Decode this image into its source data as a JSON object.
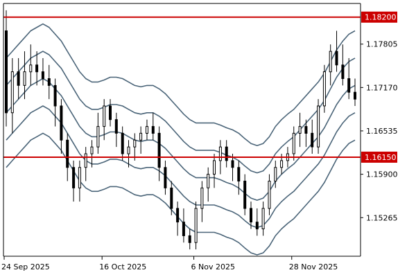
{
  "chart_data": {
    "type": "candlestick",
    "title": "",
    "xlabel": "",
    "ylabel": "",
    "ylim": [
      1.147,
      1.184
    ],
    "y_ticks": [
      "1.15265",
      "1.15900",
      "1.16535",
      "1.17170",
      "1.17805"
    ],
    "x_ticks": [
      {
        "label": "24 Sep 2025",
        "index": 0
      },
      {
        "label": "16 Oct 2025",
        "index": 16
      },
      {
        "label": "6 Nov 2025",
        "index": 31
      },
      {
        "label": "28 Nov 2025",
        "index": 47
      }
    ],
    "grid": false,
    "legend": "none",
    "horizontal_levels": [
      {
        "value": 1.182,
        "label": "1.18200",
        "color": "#cc0000"
      },
      {
        "value": 1.1615,
        "label": "1.16150",
        "color": "#cc0000"
      }
    ],
    "colors": {
      "bull": "#ffffff",
      "bear": "#000000",
      "wick": "#000000",
      "bands": "#4a6478",
      "axis": "#000000"
    },
    "ohlc": [
      [
        1.18,
        1.183,
        1.166,
        1.168
      ],
      [
        1.168,
        1.176,
        1.165,
        1.174
      ],
      [
        1.174,
        1.176,
        1.17,
        1.172
      ],
      [
        1.172,
        1.177,
        1.17,
        1.174
      ],
      [
        1.174,
        1.178,
        1.172,
        1.175
      ],
      [
        1.175,
        1.177,
        1.172,
        1.174
      ],
      [
        1.174,
        1.176,
        1.172,
        1.173
      ],
      [
        1.173,
        1.175,
        1.17,
        1.172
      ],
      [
        1.172,
        1.173,
        1.166,
        1.169
      ],
      [
        1.169,
        1.17,
        1.162,
        1.164
      ],
      [
        1.164,
        1.165,
        1.158,
        1.16
      ],
      [
        1.16,
        1.161,
        1.155,
        1.157
      ],
      [
        1.157,
        1.161,
        1.155,
        1.16
      ],
      [
        1.16,
        1.163,
        1.158,
        1.162
      ],
      [
        1.162,
        1.164,
        1.16,
        1.163
      ],
      [
        1.163,
        1.168,
        1.162,
        1.166
      ],
      [
        1.166,
        1.17,
        1.164,
        1.169
      ],
      [
        1.169,
        1.17,
        1.166,
        1.167
      ],
      [
        1.167,
        1.168,
        1.163,
        1.165
      ],
      [
        1.165,
        1.166,
        1.161,
        1.162
      ],
      [
        1.162,
        1.164,
        1.16,
        1.163
      ],
      [
        1.163,
        1.165,
        1.161,
        1.164
      ],
      [
        1.164,
        1.166,
        1.162,
        1.165
      ],
      [
        1.165,
        1.167,
        1.164,
        1.166
      ],
      [
        1.166,
        1.168,
        1.164,
        1.165
      ],
      [
        1.165,
        1.166,
        1.158,
        1.16
      ],
      [
        1.16,
        1.161,
        1.156,
        1.157
      ],
      [
        1.157,
        1.158,
        1.153,
        1.154
      ],
      [
        1.154,
        1.155,
        1.15,
        1.152
      ],
      [
        1.152,
        1.154,
        1.149,
        1.15
      ],
      [
        1.15,
        1.151,
        1.148,
        1.149
      ],
      [
        1.149,
        1.155,
        1.148,
        1.154
      ],
      [
        1.154,
        1.158,
        1.152,
        1.157
      ],
      [
        1.157,
        1.16,
        1.155,
        1.159
      ],
      [
        1.159,
        1.162,
        1.157,
        1.161
      ],
      [
        1.161,
        1.164,
        1.159,
        1.163
      ],
      [
        1.163,
        1.164,
        1.16,
        1.161
      ],
      [
        1.161,
        1.162,
        1.158,
        1.16
      ],
      [
        1.16,
        1.161,
        1.156,
        1.158
      ],
      [
        1.158,
        1.159,
        1.153,
        1.154
      ],
      [
        1.154,
        1.155,
        1.151,
        1.152
      ],
      [
        1.152,
        1.154,
        1.15,
        1.151
      ],
      [
        1.151,
        1.155,
        1.15,
        1.154
      ],
      [
        1.154,
        1.159,
        1.153,
        1.158
      ],
      [
        1.158,
        1.161,
        1.157,
        1.16
      ],
      [
        1.16,
        1.162,
        1.159,
        1.161
      ],
      [
        1.161,
        1.163,
        1.16,
        1.162
      ],
      [
        1.162,
        1.166,
        1.161,
        1.165
      ],
      [
        1.165,
        1.168,
        1.163,
        1.166
      ],
      [
        1.166,
        1.167,
        1.163,
        1.165
      ],
      [
        1.165,
        1.167,
        1.162,
        1.163
      ],
      [
        1.163,
        1.17,
        1.162,
        1.169
      ],
      [
        1.169,
        1.175,
        1.168,
        1.174
      ],
      [
        1.174,
        1.178,
        1.172,
        1.177
      ],
      [
        1.177,
        1.18,
        1.174,
        1.175
      ],
      [
        1.175,
        1.178,
        1.172,
        1.173
      ],
      [
        1.173,
        1.176,
        1.17,
        1.171
      ],
      [
        1.171,
        1.173,
        1.169,
        1.17
      ]
    ],
    "bollinger": {
      "mid": [
        1.168,
        1.169,
        1.17,
        1.171,
        1.172,
        1.1725,
        1.173,
        1.1725,
        1.1715,
        1.1705,
        1.169,
        1.1675,
        1.166,
        1.165,
        1.1645,
        1.1645,
        1.1648,
        1.1652,
        1.1652,
        1.165,
        1.1645,
        1.164,
        1.1638,
        1.164,
        1.164,
        1.1635,
        1.1628,
        1.1618,
        1.1608,
        1.1598,
        1.159,
        1.1585,
        1.1585,
        1.1585,
        1.1585,
        1.1582,
        1.1578,
        1.1575,
        1.157,
        1.1562,
        1.1555,
        1.1552,
        1.1555,
        1.1565,
        1.158,
        1.159,
        1.1598,
        1.1605,
        1.1615,
        1.1625,
        1.1635,
        1.1645,
        1.1658,
        1.1675,
        1.1692,
        1.1705,
        1.1715,
        1.172
      ],
      "band1": 0.004,
      "band2": 0.008
    }
  }
}
